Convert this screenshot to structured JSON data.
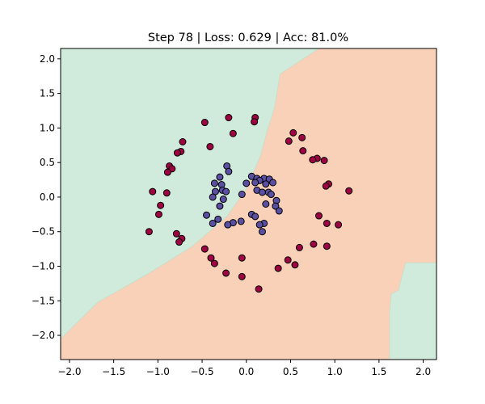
{
  "chart_data": {
    "type": "scatter",
    "title": "Step 78 | Loss: 0.629 | Acc: 81.0%",
    "xlabel": "",
    "ylabel": "",
    "xlim": [
      -2.1,
      2.15
    ],
    "ylim": [
      -2.35,
      2.15
    ],
    "xticks": [
      -2.0,
      -1.5,
      -1.0,
      -0.5,
      0.0,
      0.5,
      1.0,
      1.5,
      2.0
    ],
    "yticks": [
      -2.0,
      -1.5,
      -1.0,
      -0.5,
      0.0,
      0.5,
      1.0,
      1.5,
      2.0
    ],
    "xtick_labels": [
      "−2.0",
      "−1.5",
      "−1.0",
      "−0.5",
      "0.0",
      "0.5",
      "1.0",
      "1.5",
      "2.0"
    ],
    "ytick_labels": [
      "−2.0",
      "−1.5",
      "−1.0",
      "−0.5",
      "0.0",
      "0.5",
      "1.0",
      "1.5",
      "2.0"
    ],
    "grid": false,
    "colors": {
      "region_class0": "#d0ebdb",
      "region_class1": "#f9d0b8",
      "class0_point": "#5b4fa2",
      "class1_point": "#9e0142",
      "marker_edge": "#000000"
    },
    "decision_boundary": {
      "class0_regions": [
        [
          [
            -2.1,
            2.15
          ],
          [
            0.82,
            2.15
          ],
          [
            0.38,
            1.78
          ],
          [
            0.32,
            1.3
          ],
          [
            0.24,
            0.98
          ],
          [
            0.16,
            0.6
          ],
          [
            0.0,
            0.12
          ],
          [
            -0.22,
            -0.28
          ],
          [
            -0.62,
            -0.72
          ],
          [
            -1.1,
            -1.1
          ],
          [
            -1.68,
            -1.52
          ],
          [
            -2.1,
            -2.05
          ]
        ],
        [
          [
            1.62,
            -2.35
          ],
          [
            2.15,
            -2.35
          ],
          [
            2.15,
            -0.95
          ],
          [
            1.8,
            -0.95
          ],
          [
            1.72,
            -1.35
          ],
          [
            1.64,
            -1.4
          ],
          [
            1.62,
            -1.65
          ]
        ]
      ]
    },
    "series": [
      {
        "class": 0,
        "points": [
          [
            -0.22,
            0.45
          ],
          [
            -0.2,
            0.37
          ],
          [
            0.06,
            0.3
          ],
          [
            -0.3,
            0.29
          ],
          [
            0.12,
            0.27
          ],
          [
            0.2,
            0.27
          ],
          [
            0.15,
            0.24
          ],
          [
            0.26,
            0.26
          ],
          [
            -0.36,
            0.2
          ],
          [
            -0.28,
            0.18
          ],
          [
            -0.27,
            0.1
          ],
          [
            0.0,
            0.2
          ],
          [
            -0.05,
            0.04
          ],
          [
            0.1,
            0.21
          ],
          [
            0.12,
            0.1
          ],
          [
            0.3,
            0.21
          ],
          [
            0.22,
            0.19
          ],
          [
            -0.23,
            0.08
          ],
          [
            -0.35,
            0.08
          ],
          [
            0.25,
            0.07
          ],
          [
            0.18,
            0.07
          ],
          [
            0.28,
            0.04
          ],
          [
            0.34,
            -0.05
          ],
          [
            0.33,
            -0.13
          ],
          [
            0.22,
            -0.1
          ],
          [
            -0.26,
            -0.03
          ],
          [
            -0.38,
            0.0
          ],
          [
            -0.3,
            -0.13
          ],
          [
            0.37,
            -0.2
          ],
          [
            0.06,
            -0.25
          ],
          [
            0.1,
            -0.28
          ],
          [
            0.2,
            -0.38
          ],
          [
            -0.45,
            -0.26
          ],
          [
            -0.32,
            -0.32
          ],
          [
            0.15,
            -0.4
          ],
          [
            -0.15,
            -0.37
          ],
          [
            -0.21,
            -0.4
          ],
          [
            -0.06,
            -0.35
          ],
          [
            -0.38,
            -0.38
          ],
          [
            0.18,
            -0.5
          ]
        ]
      },
      {
        "class": 1,
        "points": [
          [
            -0.2,
            1.15
          ],
          [
            0.1,
            1.15
          ],
          [
            0.09,
            1.09
          ],
          [
            -0.47,
            1.08
          ],
          [
            -0.15,
            0.92
          ],
          [
            0.53,
            0.93
          ],
          [
            0.63,
            0.86
          ],
          [
            0.48,
            0.81
          ],
          [
            -0.72,
            0.8
          ],
          [
            -0.41,
            0.73
          ],
          [
            -0.74,
            0.66
          ],
          [
            -0.78,
            0.64
          ],
          [
            0.64,
            0.67
          ],
          [
            -0.87,
            0.45
          ],
          [
            -0.84,
            0.41
          ],
          [
            -0.89,
            0.36
          ],
          [
            0.8,
            0.56
          ],
          [
            0.75,
            0.54
          ],
          [
            0.88,
            0.53
          ],
          [
            0.93,
            0.19
          ],
          [
            0.9,
            0.16
          ],
          [
            -1.06,
            0.08
          ],
          [
            -0.9,
            0.06
          ],
          [
            1.16,
            0.09
          ],
          [
            -0.97,
            -0.12
          ],
          [
            -0.99,
            -0.25
          ],
          [
            0.82,
            -0.27
          ],
          [
            0.91,
            -0.38
          ],
          [
            1.04,
            -0.4
          ],
          [
            -1.1,
            -0.5
          ],
          [
            -0.79,
            -0.53
          ],
          [
            -0.73,
            -0.6
          ],
          [
            -0.76,
            -0.65
          ],
          [
            0.76,
            -0.68
          ],
          [
            0.91,
            -0.71
          ],
          [
            -0.47,
            -0.75
          ],
          [
            0.6,
            -0.73
          ],
          [
            -0.4,
            -0.88
          ],
          [
            -0.05,
            -0.88
          ],
          [
            0.47,
            -0.91
          ],
          [
            -0.36,
            -0.96
          ],
          [
            0.55,
            -0.98
          ],
          [
            0.36,
            -1.03
          ],
          [
            -0.23,
            -1.1
          ],
          [
            -0.05,
            -1.15
          ],
          [
            0.14,
            -1.33
          ]
        ]
      }
    ]
  }
}
